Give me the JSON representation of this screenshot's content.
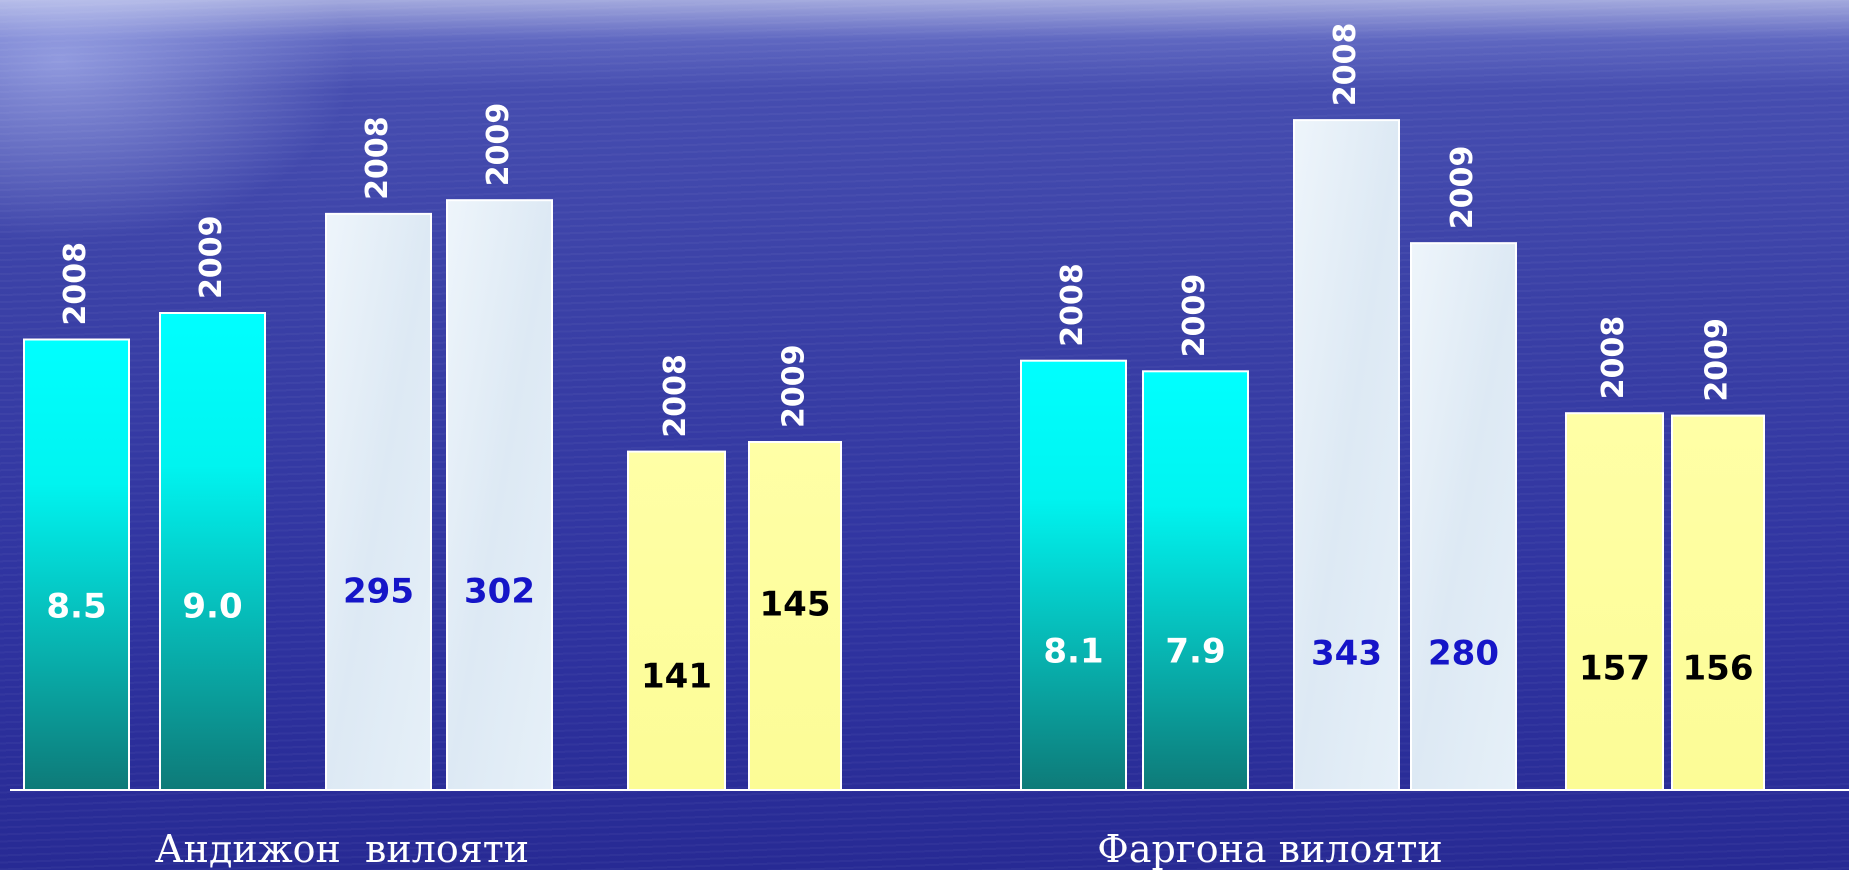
{
  "chart_data": {
    "type": "bar",
    "groups": [
      {
        "region": "Андижон  вилояти",
        "series": [
          {
            "color_top": "#00ffff",
            "color_bottom": "#0f7f7c",
            "value_color": "#ffffff",
            "bars": [
              {
                "year": "2008",
                "value": 8.5,
                "label": "8.5"
              },
              {
                "year": "2009",
                "value": 9.0,
                "label": "9.0"
              }
            ]
          },
          {
            "color_top": "#e4eff8",
            "color_bottom": "#d7e6f3",
            "value_color": "#1515c8",
            "bars": [
              {
                "year": "2008",
                "value": 295,
                "label": "295"
              },
              {
                "year": "2009",
                "value": 302,
                "label": "302"
              }
            ]
          },
          {
            "color_top": "#ffff9e",
            "color_bottom": "#ffff9e",
            "value_color": "#000000",
            "bars": [
              {
                "year": "2008",
                "value": 141,
                "label": "141"
              },
              {
                "year": "2009",
                "value": 145,
                "label": "145"
              }
            ]
          }
        ]
      },
      {
        "region": "Фаргона вилояти",
        "series": [
          {
            "color_top": "#00ffff",
            "color_bottom": "#0f7f7c",
            "value_color": "#ffffff",
            "bars": [
              {
                "year": "2008",
                "value": 8.1,
                "label": "8.1"
              },
              {
                "year": "2009",
                "value": 7.9,
                "label": "7.9"
              }
            ]
          },
          {
            "color_top": "#e4eff8",
            "color_bottom": "#d7e6f3",
            "value_color": "#1515c8",
            "bars": [
              {
                "year": "2008",
                "value": 343,
                "label": "343"
              },
              {
                "year": "2009",
                "value": 280,
                "label": "280"
              }
            ]
          },
          {
            "color_top": "#ffff9e",
            "color_bottom": "#ffff9e",
            "value_color": "#000000",
            "bars": [
              {
                "year": "2008",
                "value": 157,
                "label": "157"
              },
              {
                "year": "2009",
                "value": 156,
                "label": "156"
              }
            ]
          }
        ]
      }
    ],
    "grid": false,
    "legend": "none",
    "axis_color": "#ffffff"
  }
}
